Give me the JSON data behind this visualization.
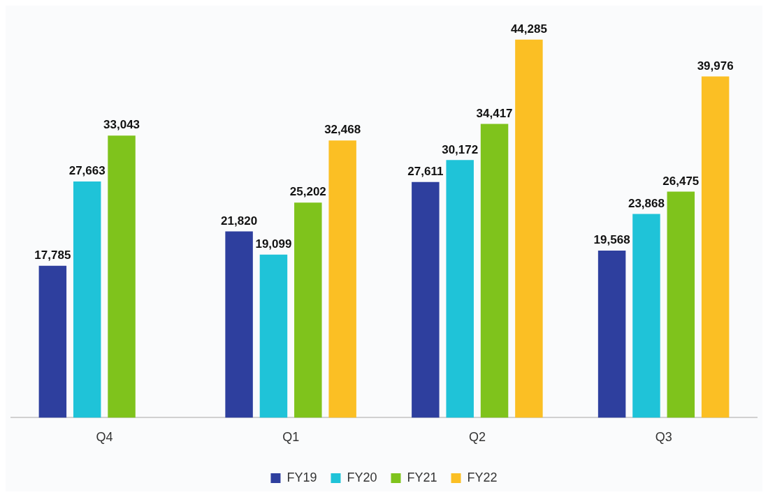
{
  "chart_data": {
    "type": "bar",
    "categories": [
      "Q4",
      "Q1",
      "Q2",
      "Q3"
    ],
    "series": [
      {
        "name": "FY19",
        "color": "#2e3f9e",
        "values": [
          17785,
          21820,
          27611,
          19568
        ],
        "value_labels": [
          "17,785",
          "21,820",
          "27,611",
          "19,568"
        ]
      },
      {
        "name": "FY20",
        "color": "#1fc3d8",
        "values": [
          27663,
          19099,
          30172,
          23868
        ],
        "value_labels": [
          "27,663",
          "19,099",
          "30,172",
          "23,868"
        ]
      },
      {
        "name": "FY21",
        "color": "#7fc31c",
        "values": [
          33043,
          25202,
          34417,
          26475
        ],
        "value_labels": [
          "33,043",
          "25,202",
          "34,417",
          "26,475"
        ]
      },
      {
        "name": "FY22",
        "color": "#fbbf24",
        "values": [
          null,
          32468,
          44285,
          39976
        ],
        "value_labels": [
          null,
          "32,468",
          "44,285",
          "39,976"
        ]
      }
    ],
    "legend": "bottom",
    "grid": false
  }
}
